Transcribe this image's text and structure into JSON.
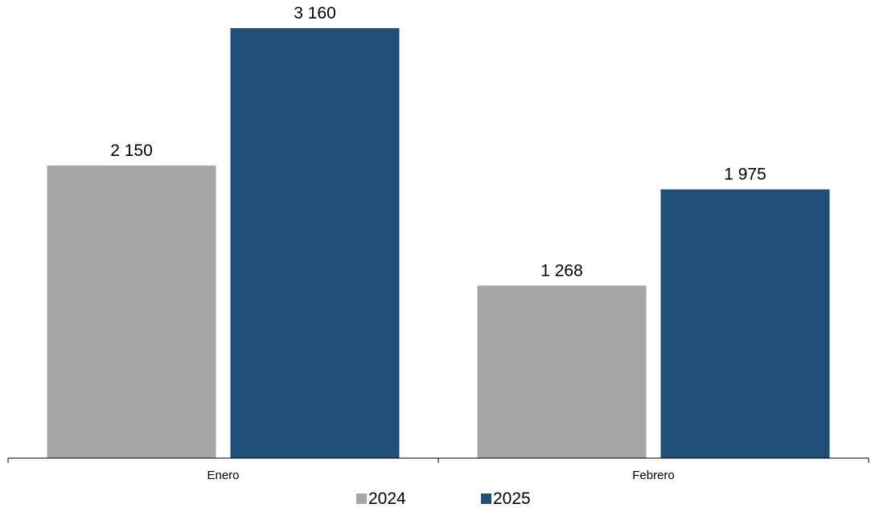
{
  "chart_data": {
    "type": "bar",
    "categories": [
      "Enero",
      "Febrero"
    ],
    "series": [
      {
        "name": "2024",
        "values": [
          2150,
          1268
        ],
        "value_labels": [
          "2 150",
          "1 268"
        ],
        "color": "#a6a6a6"
      },
      {
        "name": "2025",
        "values": [
          3160,
          1975
        ],
        "value_labels": [
          "3 160",
          "1 975"
        ],
        "color": "#1f4e79"
      }
    ],
    "title": "",
    "xlabel": "",
    "ylabel": "",
    "ylim": [
      0,
      3160
    ],
    "grid": false,
    "legend_position": "bottom"
  }
}
